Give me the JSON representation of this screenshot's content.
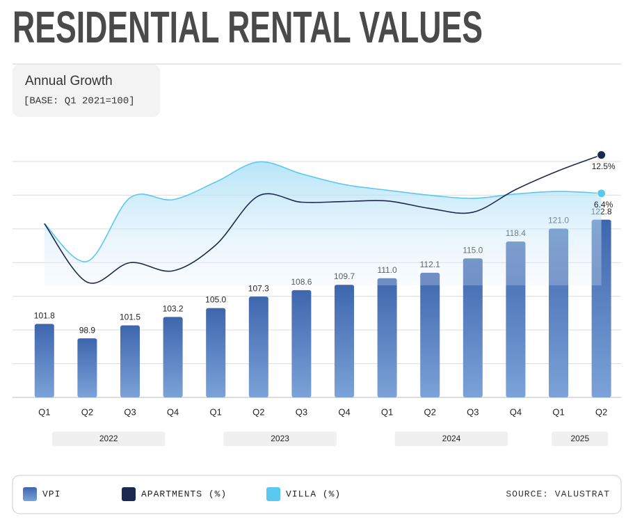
{
  "chart_data": {
    "type": "bar_line",
    "title": "RESIDENTIAL RENTAL VALUES",
    "subtitle": "Annual Growth",
    "note": "[BASE: Q1 2021=100]",
    "source": "SOURCE: VALUSTRAT",
    "categories": [
      "Q1",
      "Q2",
      "Q3",
      "Q4",
      "Q1",
      "Q2",
      "Q3",
      "Q4",
      "Q1",
      "Q2",
      "Q3",
      "Q4",
      "Q1",
      "Q2"
    ],
    "category_groups": [
      "2022",
      "2022",
      "2022",
      "2022",
      "2023",
      "2023",
      "2023",
      "2023",
      "2024",
      "2024",
      "2024",
      "2024",
      "2025",
      "2025"
    ],
    "ylim": [
      87,
      139
    ],
    "y2lim": [
      -26,
      15
    ],
    "grid": true,
    "series": [
      {
        "name": "VPI",
        "color": "#4a72b8",
        "type": "bar",
        "values": [
          101.8,
          98.9,
          101.5,
          103.2,
          105.0,
          107.3,
          108.6,
          109.7,
          111.0,
          112.1,
          115.0,
          118.4,
          121.0,
          122.8
        ],
        "value_labels": [
          "101.8",
          "98.9",
          "101.5",
          "103.2",
          "105.0",
          "107.3",
          "108.6",
          "109.7",
          "111.0",
          "112.1",
          "115.0",
          "118.4",
          "121.0",
          "122.8"
        ]
      },
      {
        "name": "APARTMENTS (%)",
        "color": "#1b2a4e",
        "type": "line",
        "axis": "y2",
        "values": [
          1.6,
          -7.7,
          -4.6,
          -5.9,
          -1.8,
          6.0,
          5.0,
          5.1,
          5.2,
          4.0,
          3.4,
          7.0,
          10.0,
          12.5
        ],
        "value_labels": [
          null,
          null,
          null,
          null,
          null,
          null,
          null,
          null,
          null,
          null,
          null,
          null,
          null,
          "12.5%"
        ]
      },
      {
        "name": "VILLA (%)",
        "color": "#5bc8f0",
        "type": "area",
        "axis": "y2",
        "values": [
          1.6,
          -4.4,
          5.7,
          5.4,
          8.2,
          11.4,
          9.5,
          7.8,
          6.9,
          6.1,
          5.6,
          6.3,
          6.7,
          6.4
        ],
        "value_labels": [
          null,
          null,
          null,
          null,
          null,
          null,
          null,
          null,
          null,
          null,
          null,
          null,
          null,
          "6.4%"
        ]
      }
    ]
  }
}
